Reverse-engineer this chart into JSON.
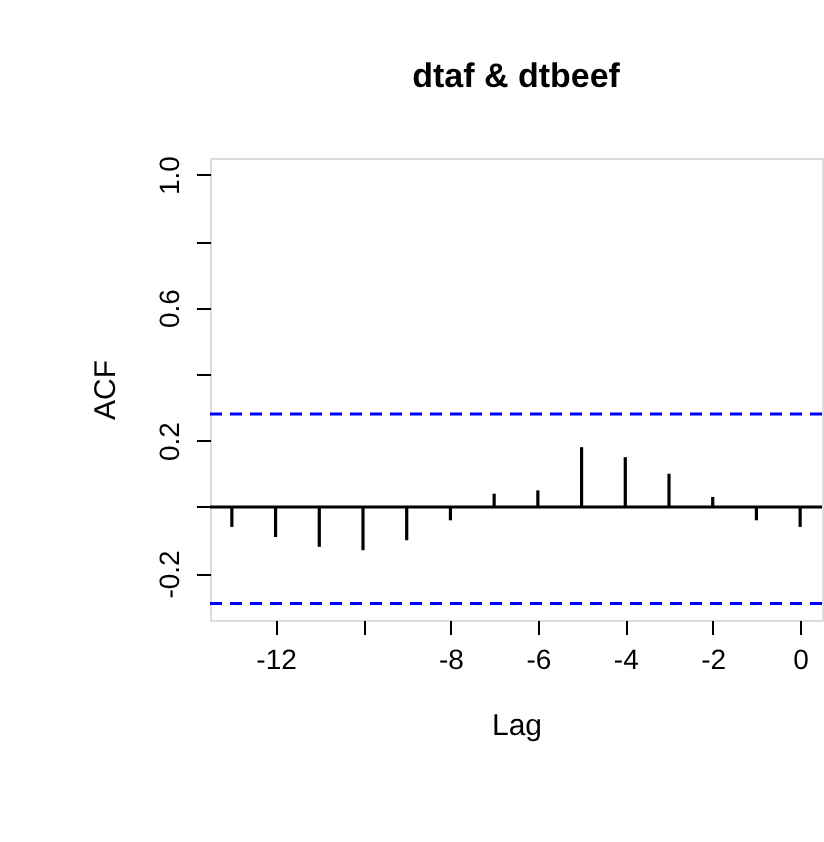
{
  "chart_data": {
    "type": "bar",
    "title": "dtaf & dtbeef",
    "xlabel": "Lag",
    "ylabel": "ACF",
    "x": [
      -13,
      -12,
      -11,
      -10,
      -9,
      -8,
      -7,
      -6,
      -5,
      -4,
      -3,
      -2,
      -1,
      0
    ],
    "values": [
      -0.06,
      -0.09,
      -0.12,
      -0.13,
      -0.1,
      -0.04,
      0.04,
      0.05,
      0.18,
      0.15,
      0.1,
      0.03,
      -0.04,
      -0.06
    ],
    "color": "#000000",
    "xlim": [
      -13.5,
      0.5
    ],
    "ylim": [
      -0.34,
      1.05
    ],
    "xticks": [
      -12,
      {
        "value": -10,
        "label": null
      },
      -8,
      -6,
      -4,
      -2,
      0
    ],
    "yticks": [
      {
        "value": -0.2,
        "label": "-0.2"
      },
      {
        "value": 0,
        "label": null
      },
      {
        "value": 0.2,
        "label": "0.2"
      },
      {
        "value": 0.4,
        "label": null
      },
      {
        "value": 0.6,
        "label": "0.6"
      },
      {
        "value": 0.8,
        "label": null
      },
      {
        "value": 1.0,
        "label": "1.0"
      }
    ],
    "ref_lines": [
      {
        "axis": "y",
        "value": 0,
        "color": "#000000",
        "line_style": "solid"
      },
      {
        "axis": "y",
        "value": 0.28,
        "color": "#0000ff",
        "line_style": "dashed"
      },
      {
        "axis": "y",
        "value": -0.29,
        "color": "#0000ff",
        "line_style": "dashed"
      }
    ],
    "grid": false
  }
}
